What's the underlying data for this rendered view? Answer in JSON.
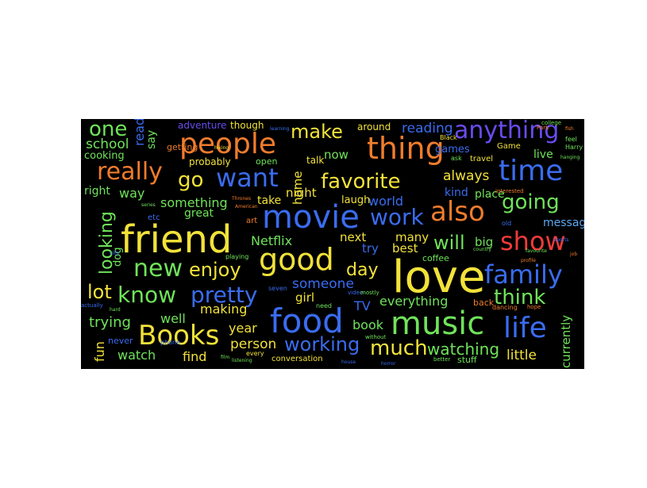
{
  "background": "#000000",
  "palette": {
    "orange": "#f07c2c",
    "yellow": "#f2e23a",
    "green": "#6fe35a",
    "blue": "#3a6cf0",
    "lightblue": "#5aa8f0",
    "red": "#f03a3a",
    "purple": "#6a4cf0",
    "teal": "#3ac8c8"
  },
  "words": [
    {
      "text": "love",
      "color": "#f2e23a"
    },
    {
      "text": "friend",
      "color": "#f2e23a"
    },
    {
      "text": "movie",
      "color": "#3a6cf0"
    },
    {
      "text": "food",
      "color": "#3a6cf0"
    },
    {
      "text": "music",
      "color": "#6fe35a"
    },
    {
      "text": "good",
      "color": "#f2e23a"
    },
    {
      "text": "people",
      "color": "#f07c2c"
    },
    {
      "text": "thing",
      "color": "#f07c2c"
    },
    {
      "text": "time",
      "color": "#3a6cf0"
    },
    {
      "text": "want",
      "color": "#3a6cf0"
    },
    {
      "text": "Books",
      "color": "#f2e23a"
    },
    {
      "text": "life",
      "color": "#3a6cf0"
    },
    {
      "text": "family",
      "color": "#3a6cf0"
    },
    {
      "text": "show",
      "color": "#f03a3a"
    },
    {
      "text": "also",
      "color": "#f07c2c"
    },
    {
      "text": "really",
      "color": "#f07c2c"
    },
    {
      "text": "anything",
      "color": "#6a4cf0"
    },
    {
      "text": "new",
      "color": "#6fe35a"
    },
    {
      "text": "know",
      "color": "#6fe35a"
    },
    {
      "text": "pretty",
      "color": "#3a6cf0"
    },
    {
      "text": "work",
      "color": "#3a6cf0"
    },
    {
      "text": "favorite",
      "color": "#f2e23a"
    },
    {
      "text": "much",
      "color": "#f2e23a"
    },
    {
      "text": "working",
      "color": "#3a6cf0"
    },
    {
      "text": "going",
      "color": "#6fe35a"
    },
    {
      "text": "make",
      "color": "#f2e23a"
    },
    {
      "text": "enjoy",
      "color": "#f2e23a"
    },
    {
      "text": "one",
      "color": "#6fe35a"
    },
    {
      "text": "go",
      "color": "#f2e23a"
    },
    {
      "text": "think",
      "color": "#6fe35a"
    },
    {
      "text": "lot",
      "color": "#f2e23a"
    },
    {
      "text": "will",
      "color": "#6fe35a"
    },
    {
      "text": "looking",
      "color": "#6fe35a"
    },
    {
      "text": "day",
      "color": "#f2e23a"
    },
    {
      "text": "watching",
      "color": "#6fe35a"
    },
    {
      "text": "trying",
      "color": "#6fe35a"
    },
    {
      "text": "school",
      "color": "#6fe35a"
    },
    {
      "text": "something",
      "color": "#6fe35a"
    },
    {
      "text": "Netflix",
      "color": "#6fe35a"
    },
    {
      "text": "someone",
      "color": "#3a6cf0"
    },
    {
      "text": "message",
      "color": "#5aa8f0"
    },
    {
      "text": "everything",
      "color": "#6fe35a"
    },
    {
      "text": "reading",
      "color": "#3a6cf0"
    },
    {
      "text": "world",
      "color": "#3a6cf0"
    },
    {
      "text": "always",
      "color": "#f2e23a"
    },
    {
      "text": "currently",
      "color": "#6fe35a"
    },
    {
      "text": "little",
      "color": "#f2e23a"
    },
    {
      "text": "person",
      "color": "#f2e23a"
    },
    {
      "text": "making",
      "color": "#f2e23a"
    },
    {
      "text": "year",
      "color": "#f2e23a"
    },
    {
      "text": "fun",
      "color": "#f2e23a"
    },
    {
      "text": "watch",
      "color": "#6fe35a"
    },
    {
      "text": "find",
      "color": "#f2e23a"
    },
    {
      "text": "well",
      "color": "#6fe35a"
    },
    {
      "text": "book",
      "color": "#6fe35a"
    },
    {
      "text": "TV",
      "color": "#3a6cf0"
    },
    {
      "text": "girl",
      "color": "#f2e23a"
    },
    {
      "text": "best",
      "color": "#f2e23a"
    },
    {
      "text": "try",
      "color": "#3a6cf0"
    },
    {
      "text": "next",
      "color": "#f2e23a"
    },
    {
      "text": "many",
      "color": "#f2e23a"
    },
    {
      "text": "big",
      "color": "#6fe35a"
    },
    {
      "text": "kind",
      "color": "#3a6cf0"
    },
    {
      "text": "place",
      "color": "#6fe35a"
    },
    {
      "text": "night",
      "color": "#f2e23a"
    },
    {
      "text": "laugh",
      "color": "#f2e23a"
    },
    {
      "text": "take",
      "color": "#f2e23a"
    },
    {
      "text": "great",
      "color": "#6fe35a"
    },
    {
      "text": "way",
      "color": "#6fe35a"
    },
    {
      "text": "right",
      "color": "#6fe35a"
    },
    {
      "text": "cooking",
      "color": "#6fe35a"
    },
    {
      "text": "probably",
      "color": "#f2e23a"
    },
    {
      "text": "adventure",
      "color": "#6a4cf0"
    },
    {
      "text": "though",
      "color": "#f2e23a"
    },
    {
      "text": "around",
      "color": "#f2e23a"
    },
    {
      "text": "games",
      "color": "#3a6cf0"
    },
    {
      "text": "now",
      "color": "#6fe35a"
    },
    {
      "text": "talk",
      "color": "#f2e23a"
    },
    {
      "text": "home",
      "color": "#f2e23a"
    },
    {
      "text": "live",
      "color": "#6fe35a"
    },
    {
      "text": "read",
      "color": "#3a6cf0"
    },
    {
      "text": "say",
      "color": "#6fe35a"
    },
    {
      "text": "getting",
      "color": "#f07c2c"
    },
    {
      "text": "open",
      "color": "#6fe35a"
    },
    {
      "text": "dog",
      "color": "#6fe35a"
    },
    {
      "text": "coffee",
      "color": "#6fe35a"
    },
    {
      "text": "back",
      "color": "#f07c2c"
    },
    {
      "text": "conversation",
      "color": "#f2e23a"
    },
    {
      "text": "stuff",
      "color": "#6fe35a"
    },
    {
      "text": "travel",
      "color": "#f2e23a"
    },
    {
      "text": "Game",
      "color": "#f2e23a"
    },
    {
      "text": "etc",
      "color": "#3a6cf0"
    },
    {
      "text": "art",
      "color": "#f07c2c"
    },
    {
      "text": "never",
      "color": "#3a6cf0"
    },
    {
      "text": "playing",
      "color": "#6fe35a"
    },
    {
      "text": "phone",
      "color": "#3a6cf0"
    },
    {
      "text": "every",
      "color": "#f2e23a"
    },
    {
      "text": "seven",
      "color": "#3a6cf0"
    },
    {
      "text": "need",
      "color": "#6fe35a"
    },
    {
      "text": "college",
      "color": "#6fe35a"
    },
    {
      "text": "feel",
      "color": "#6fe35a"
    },
    {
      "text": "Harry",
      "color": "#6fe35a"
    },
    {
      "text": "Black",
      "color": "#f2e23a"
    },
    {
      "text": "ask",
      "color": "#6fe35a"
    },
    {
      "text": "old",
      "color": "#3a6cf0"
    },
    {
      "text": "video",
      "color": "#3a6cf0"
    },
    {
      "text": "dancing",
      "color": "#f07c2c"
    },
    {
      "text": "better",
      "color": "#6fe35a"
    },
    {
      "text": "interested",
      "color": "#f07c2c"
    },
    {
      "text": "hope",
      "color": "#f07c2c"
    },
    {
      "text": "learning",
      "color": "#3a6cf0"
    },
    {
      "text": "city",
      "color": "#3a6cf0"
    },
    {
      "text": "actually",
      "color": "#3a6cf0"
    },
    {
      "text": "hard",
      "color": "#6fe35a"
    },
    {
      "text": "Park",
      "color": "#f07c2c"
    },
    {
      "text": "mostly",
      "color": "#6fe35a"
    },
    {
      "text": "without",
      "color": "#6fe35a"
    },
    {
      "text": "horror",
      "color": "#3a6cf0"
    },
    {
      "text": "series",
      "color": "#6fe35a"
    },
    {
      "text": "American",
      "color": "#f07c2c"
    },
    {
      "text": "Thrones",
      "color": "#f07c2c"
    },
    {
      "text": "listening",
      "color": "#6fe35a"
    },
    {
      "text": "film",
      "color": "#6fe35a"
    },
    {
      "text": "hiking",
      "color": "#f2e23a"
    },
    {
      "text": "house",
      "color": "#3a6cf0"
    },
    {
      "text": "country",
      "color": "#6fe35a"
    },
    {
      "text": "profile",
      "color": "#f07c2c"
    },
    {
      "text": "favourite",
      "color": "#6fe35a"
    },
    {
      "text": "fish",
      "color": "#f07c2c"
    },
    {
      "text": "hanging",
      "color": "#6fe35a"
    },
    {
      "text": "job",
      "color": "#f07c2c"
    },
    {
      "text": "sports",
      "color": "#3a6cf0"
    }
  ]
}
